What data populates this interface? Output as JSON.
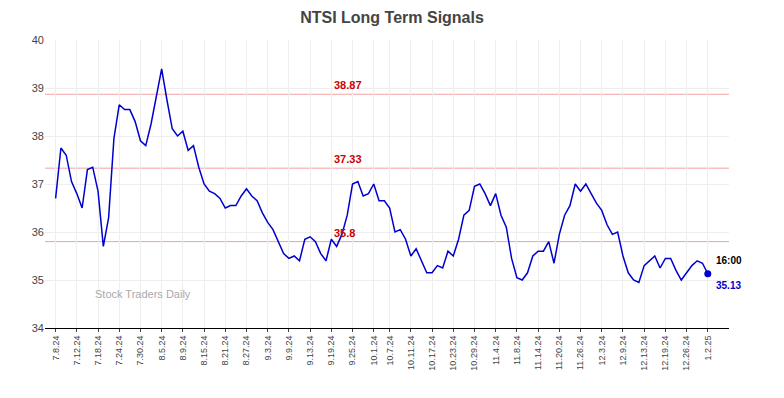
{
  "chart_data": {
    "type": "line",
    "title": "NTSI Long Term Signals",
    "watermark": "Stock Traders Daily",
    "categories": [
      "7.8.24",
      null,
      null,
      null,
      "7.12.24",
      null,
      null,
      null,
      "7.18.24",
      null,
      null,
      null,
      "7.24.24",
      null,
      null,
      null,
      "7.30.24",
      null,
      null,
      null,
      "8.5.24",
      null,
      null,
      null,
      "8.9.24",
      null,
      null,
      null,
      "8.15.24",
      null,
      null,
      null,
      "8.21.24",
      null,
      null,
      null,
      "8.27.24",
      null,
      null,
      null,
      "9.3.24",
      null,
      null,
      null,
      "9.9.24",
      null,
      null,
      null,
      "9.13.24",
      null,
      null,
      null,
      "9.19.24",
      null,
      null,
      null,
      "9.25.24",
      null,
      null,
      null,
      "10.1.24",
      null,
      null,
      "10.7.24",
      null,
      null,
      null,
      "10.11.24",
      null,
      null,
      null,
      "10.17.24",
      null,
      null,
      null,
      "10.23.24",
      null,
      null,
      null,
      "10.29.24",
      null,
      null,
      null,
      "11.4.24",
      null,
      null,
      null,
      "11.8.24",
      null,
      null,
      null,
      "11.14.24",
      null,
      null,
      null,
      "11.20.24",
      null,
      null,
      null,
      "11.26.24",
      null,
      null,
      null,
      "12.3.24",
      null,
      null,
      null,
      "12.9.24",
      null,
      null,
      null,
      "12.13.24",
      null,
      null,
      null,
      "12.19.24",
      null,
      null,
      null,
      "12.26.24",
      null,
      null,
      null,
      "1.2.25"
    ],
    "values": [
      36.7,
      37.75,
      37.6,
      37.05,
      36.8,
      36.5,
      37.3,
      37.35,
      36.85,
      35.7,
      36.3,
      37.95,
      38.65,
      38.55,
      38.55,
      38.3,
      37.9,
      37.8,
      38.25,
      38.8,
      39.4,
      38.75,
      38.15,
      38.0,
      38.1,
      37.7,
      37.8,
      37.35,
      37.0,
      36.85,
      36.8,
      36.7,
      36.5,
      36.55,
      36.55,
      36.75,
      36.9,
      36.75,
      36.65,
      36.4,
      36.2,
      36.05,
      35.8,
      35.55,
      35.45,
      35.5,
      35.4,
      35.85,
      35.9,
      35.8,
      35.55,
      35.4,
      35.85,
      35.7,
      35.95,
      36.35,
      37.0,
      37.05,
      36.75,
      36.8,
      37.0,
      36.65,
      36.65,
      36.5,
      36.0,
      36.05,
      35.85,
      35.5,
      35.65,
      35.4,
      35.15,
      35.15,
      35.3,
      35.25,
      35.6,
      35.5,
      35.85,
      36.35,
      36.45,
      36.95,
      37.0,
      36.8,
      36.55,
      36.8,
      36.35,
      36.1,
      35.45,
      35.05,
      35.0,
      35.15,
      35.5,
      35.6,
      35.6,
      35.8,
      35.35,
      35.95,
      36.35,
      36.55,
      37.0,
      36.85,
      37.0,
      36.8,
      36.6,
      36.45,
      36.15,
      35.95,
      36.0,
      35.5,
      35.15,
      35.0,
      34.95,
      35.3,
      35.4,
      35.5,
      35.25,
      35.45,
      35.45,
      35.2,
      35.0,
      35.15,
      35.3,
      35.4,
      35.35,
      35.13
    ],
    "color": "#0000cc",
    "last_point": {
      "time_label": "16:00",
      "value_label": "35.13",
      "color": "#0000cc"
    },
    "hlines": [
      {
        "value": 38.87,
        "label": "38.87",
        "color": "#f5a0a0",
        "label_color": "#cc0000"
      },
      {
        "value": 37.33,
        "label": "37.33",
        "color": "#f5a0a0",
        "label_color": "#cc0000"
      },
      {
        "value": 35.8,
        "label": "35.8",
        "color": "#f5a0a0",
        "label_color": "#cc0000"
      }
    ],
    "ylim": [
      34,
      40
    ],
    "yticks": [
      34,
      35,
      36,
      37,
      38,
      39,
      40
    ],
    "grid": true
  }
}
